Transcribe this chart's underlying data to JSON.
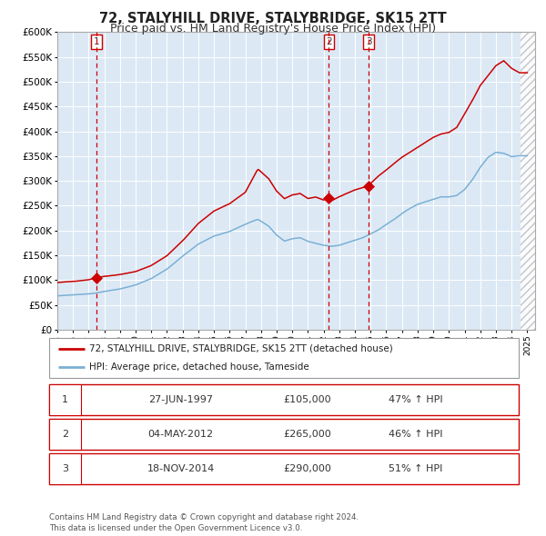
{
  "title": "72, STALYHILL DRIVE, STALYBRIDGE, SK15 2TT",
  "subtitle": "Price paid vs. HM Land Registry's House Price Index (HPI)",
  "title_fontsize": 10.5,
  "subtitle_fontsize": 9,
  "plot_bg_color": "#dce9f5",
  "red_line_color": "#cc0000",
  "blue_line_color": "#7ab0d4",
  "grid_color": "#ffffff",
  "ylim": [
    0,
    600000
  ],
  "yticks": [
    0,
    50000,
    100000,
    150000,
    200000,
    250000,
    300000,
    350000,
    400000,
    450000,
    500000,
    550000,
    600000
  ],
  "ytick_labels": [
    "£0",
    "£50K",
    "£100K",
    "£150K",
    "£200K",
    "£250K",
    "£300K",
    "£350K",
    "£400K",
    "£450K",
    "£500K",
    "£550K",
    "£600K"
  ],
  "xmin": 1995.0,
  "xmax": 2025.5,
  "sale_dates": [
    1997.487,
    2012.338,
    2014.882
  ],
  "sale_prices": [
    105000,
    265000,
    290000
  ],
  "sale_labels": [
    "1",
    "2",
    "3"
  ],
  "vline_color": "#cc0000",
  "legend_label_red": "72, STALYHILL DRIVE, STALYBRIDGE, SK15 2TT (detached house)",
  "legend_label_blue": "HPI: Average price, detached house, Tameside",
  "table_rows": [
    {
      "num": "1",
      "date": "27-JUN-1997",
      "price": "£105,000",
      "hpi": "47% ↑ HPI"
    },
    {
      "num": "2",
      "date": "04-MAY-2012",
      "price": "£265,000",
      "hpi": "46% ↑ HPI"
    },
    {
      "num": "3",
      "date": "18-NOV-2014",
      "price": "£290,000",
      "hpi": "51% ↑ HPI"
    }
  ],
  "footer": "Contains HM Land Registry data © Crown copyright and database right 2024.\nThis data is licensed under the Open Government Licence v3.0.",
  "xticks": [
    1995,
    1996,
    1997,
    1998,
    1999,
    2000,
    2001,
    2002,
    2003,
    2004,
    2005,
    2006,
    2007,
    2008,
    2009,
    2010,
    2011,
    2012,
    2013,
    2014,
    2015,
    2016,
    2017,
    2018,
    2019,
    2020,
    2021,
    2022,
    2023,
    2024,
    2025
  ],
  "red_waypoints": [
    [
      1995.0,
      95000
    ],
    [
      1996.0,
      97000
    ],
    [
      1997.0,
      101000
    ],
    [
      1997.487,
      105000
    ],
    [
      1998.0,
      108000
    ],
    [
      1999.0,
      112000
    ],
    [
      2000.0,
      118000
    ],
    [
      2001.0,
      130000
    ],
    [
      2002.0,
      150000
    ],
    [
      2003.0,
      180000
    ],
    [
      2004.0,
      215000
    ],
    [
      2005.0,
      240000
    ],
    [
      2006.0,
      255000
    ],
    [
      2007.0,
      278000
    ],
    [
      2007.8,
      325000
    ],
    [
      2008.5,
      305000
    ],
    [
      2009.0,
      280000
    ],
    [
      2009.5,
      265000
    ],
    [
      2010.0,
      272000
    ],
    [
      2010.5,
      275000
    ],
    [
      2011.0,
      265000
    ],
    [
      2011.5,
      268000
    ],
    [
      2012.0,
      262000
    ],
    [
      2012.338,
      265000
    ],
    [
      2012.5,
      260000
    ],
    [
      2013.0,
      268000
    ],
    [
      2013.5,
      275000
    ],
    [
      2014.0,
      282000
    ],
    [
      2014.882,
      290000
    ],
    [
      2015.0,
      295000
    ],
    [
      2015.5,
      310000
    ],
    [
      2016.0,
      322000
    ],
    [
      2016.5,
      335000
    ],
    [
      2017.0,
      348000
    ],
    [
      2017.5,
      358000
    ],
    [
      2018.0,
      368000
    ],
    [
      2018.5,
      378000
    ],
    [
      2019.0,
      388000
    ],
    [
      2019.5,
      395000
    ],
    [
      2020.0,
      398000
    ],
    [
      2020.5,
      408000
    ],
    [
      2021.0,
      435000
    ],
    [
      2021.5,
      462000
    ],
    [
      2022.0,
      492000
    ],
    [
      2022.5,
      512000
    ],
    [
      2023.0,
      532000
    ],
    [
      2023.5,
      542000
    ],
    [
      2024.0,
      527000
    ],
    [
      2024.5,
      518000
    ],
    [
      2025.0,
      518000
    ]
  ],
  "blue_waypoints": [
    [
      1995.0,
      68000
    ],
    [
      1996.0,
      70000
    ],
    [
      1997.0,
      72000
    ],
    [
      1997.5,
      74000
    ],
    [
      1998.0,
      77000
    ],
    [
      1999.0,
      82000
    ],
    [
      2000.0,
      90000
    ],
    [
      2001.0,
      103000
    ],
    [
      2002.0,
      122000
    ],
    [
      2003.0,
      148000
    ],
    [
      2004.0,
      172000
    ],
    [
      2005.0,
      188000
    ],
    [
      2006.0,
      197000
    ],
    [
      2007.0,
      212000
    ],
    [
      2007.8,
      222000
    ],
    [
      2008.5,
      208000
    ],
    [
      2009.0,
      190000
    ],
    [
      2009.5,
      178000
    ],
    [
      2010.0,
      183000
    ],
    [
      2010.5,
      185000
    ],
    [
      2011.0,
      178000
    ],
    [
      2011.5,
      174000
    ],
    [
      2012.0,
      170000
    ],
    [
      2012.5,
      168000
    ],
    [
      2013.0,
      170000
    ],
    [
      2013.5,
      175000
    ],
    [
      2014.0,
      180000
    ],
    [
      2014.5,
      185000
    ],
    [
      2015.0,
      193000
    ],
    [
      2015.5,
      201000
    ],
    [
      2016.0,
      212000
    ],
    [
      2016.5,
      222000
    ],
    [
      2017.0,
      234000
    ],
    [
      2017.5,
      244000
    ],
    [
      2018.0,
      252000
    ],
    [
      2018.5,
      257000
    ],
    [
      2019.0,
      262000
    ],
    [
      2019.5,
      267000
    ],
    [
      2020.0,
      267000
    ],
    [
      2020.5,
      270000
    ],
    [
      2021.0,
      282000
    ],
    [
      2021.5,
      302000
    ],
    [
      2022.0,
      327000
    ],
    [
      2022.5,
      347000
    ],
    [
      2023.0,
      357000
    ],
    [
      2023.5,
      355000
    ],
    [
      2024.0,
      348000
    ],
    [
      2024.5,
      350000
    ],
    [
      2025.0,
      350000
    ]
  ]
}
